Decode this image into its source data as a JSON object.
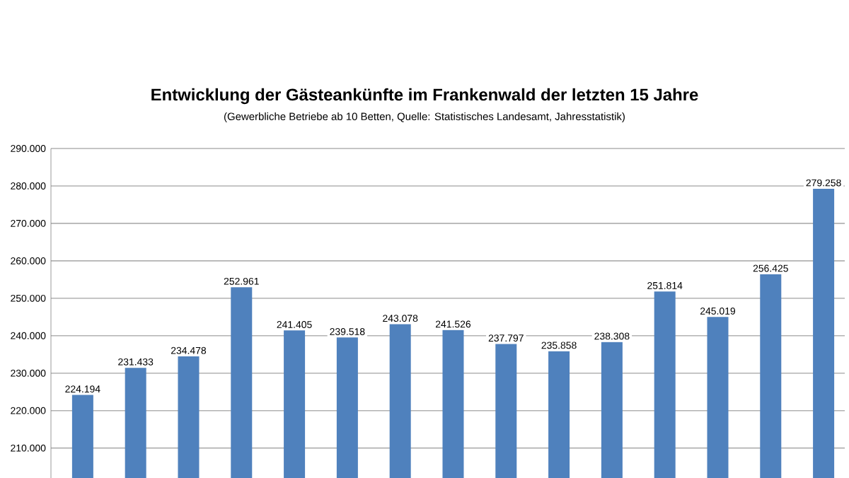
{
  "chart_data": {
    "type": "bar",
    "title": "Entwicklung der Gästeankünfte im Frankenwald der letzten 15 Jahre",
    "subtitle": "(Gewerbliche Betriebe ab 10 Betten, Quelle: Statistisches Landesamt, Jahresstatistik)",
    "categories": [
      null,
      null,
      null,
      null,
      null,
      null,
      null,
      null,
      null,
      null,
      null,
      null,
      null,
      null,
      null
    ],
    "values": [
      224194,
      231433,
      234478,
      252961,
      241405,
      239518,
      243078,
      241526,
      237797,
      235858,
      238308,
      251814,
      245019,
      256425,
      279258
    ],
    "value_labels": [
      "224.194",
      "231.433",
      "234.478",
      "252.961",
      "241.405",
      "239.518",
      "243.078",
      "241.526",
      "237.797",
      "235.858",
      "238.308",
      "251.814",
      "245.019",
      "256.425",
      "279.258"
    ],
    "color": "#4f81bd",
    "ylim": [
      202000,
      290000
    ],
    "yticks": [
      {
        "value": 210000,
        "label": "210.000"
      },
      {
        "value": 220000,
        "label": "220.000"
      },
      {
        "value": 230000,
        "label": "230.000"
      },
      {
        "value": 240000,
        "label": "240.000"
      },
      {
        "value": 250000,
        "label": "250.000"
      },
      {
        "value": 260000,
        "label": "260.000"
      },
      {
        "value": 270000,
        "label": "270.000"
      },
      {
        "value": 280000,
        "label": "280.000"
      },
      {
        "value": 290000,
        "label": "290.000"
      }
    ],
    "grid": "y",
    "tick_labels": "y"
  }
}
